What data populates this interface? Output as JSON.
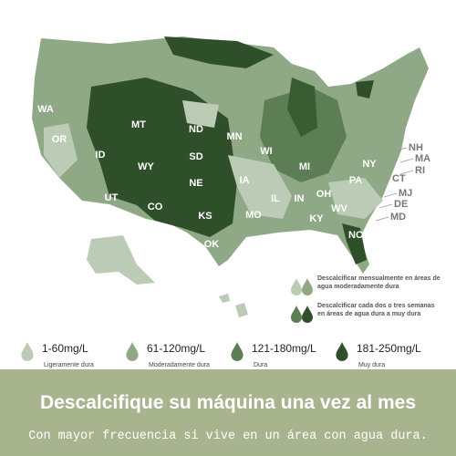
{
  "states": [
    "WA",
    "OR",
    "MT",
    "ID",
    "WY",
    "UT",
    "CO",
    "ND",
    "SD",
    "NE",
    "KS",
    "OK",
    "MN",
    "WI",
    "IA",
    "IL",
    "IN",
    "OH",
    "MI",
    "MO",
    "KY",
    "WV",
    "PA",
    "NY",
    "NC"
  ],
  "small_states": [
    "NH",
    "MA",
    "RI",
    "CT",
    "MJ",
    "DE",
    "MD"
  ],
  "legend": [
    "Descalcificar mensualmente en áreas de agua moderadamente dura",
    "Descalcificar cada dos o tres semanas en áreas de agua dura a muy dura"
  ],
  "scale": [
    {
      "range": "1-60mg/L",
      "label": "Ligeramente dura"
    },
    {
      "range": "61-120mg/L",
      "label": "Moderadamente dura"
    },
    {
      "range": "121-180mg/L",
      "label": "Dura"
    },
    {
      "range": "181-250mg/L",
      "label": "Muy dura"
    }
  ],
  "footer": {
    "title": "Descalcifique su máquina una vez al mes",
    "subtitle": "Con mayor frecuencia si vive en un área con agua dura."
  }
}
